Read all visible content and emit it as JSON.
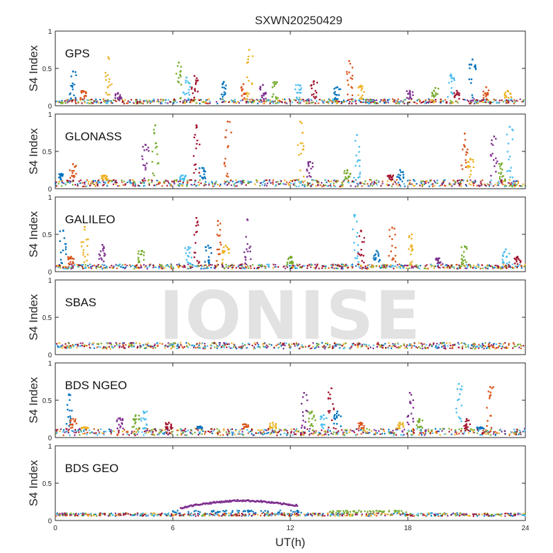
{
  "watermark": "IONISE",
  "chart_data": {
    "type": "scatter",
    "title": "SXWN20250429",
    "xlabel": "UT(h)",
    "ylabel": "S4 Index",
    "xlim": [
      0,
      24
    ],
    "ylim": [
      0,
      1
    ],
    "xticks": [
      0,
      6,
      12,
      18,
      24
    ],
    "yticks": [
      0,
      0.5,
      1
    ],
    "ytick_labels": [
      "0",
      "0.5",
      "1"
    ],
    "grid": false,
    "colors": [
      "#0072BD",
      "#D95319",
      "#EDB120",
      "#7E2F8E",
      "#77AC30",
      "#4DBEEE",
      "#A2142F"
    ],
    "panels": [
      {
        "label": "GPS",
        "baseline": [
          0.03,
          0.09
        ],
        "bursts": [
          [
            0.9,
            0.46
          ],
          [
            1.4,
            0.2
          ],
          [
            2.7,
            0.65
          ],
          [
            3.2,
            0.17
          ],
          [
            6.3,
            0.58
          ],
          [
            6.7,
            0.38
          ],
          [
            7.1,
            0.4
          ],
          [
            8.6,
            0.32
          ],
          [
            9.6,
            0.29
          ],
          [
            9.9,
            0.75
          ],
          [
            10.6,
            0.28
          ],
          [
            11.2,
            0.32
          ],
          [
            12.4,
            0.28
          ],
          [
            13.2,
            0.33
          ],
          [
            14.4,
            0.25
          ],
          [
            15.0,
            0.6
          ],
          [
            15.6,
            0.27
          ],
          [
            18.1,
            0.2
          ],
          [
            19.4,
            0.24
          ],
          [
            20.2,
            0.42
          ],
          [
            20.5,
            0.2
          ],
          [
            21.3,
            0.62
          ],
          [
            22.0,
            0.25
          ],
          [
            23.1,
            0.2
          ]
        ]
      },
      {
        "label": "GLONASS",
        "baseline": [
          0.03,
          0.12
        ],
        "bursts": [
          [
            0.3,
            0.2
          ],
          [
            0.9,
            0.33
          ],
          [
            2.5,
            0.18
          ],
          [
            4.6,
            0.59
          ],
          [
            5.1,
            0.85
          ],
          [
            6.5,
            0.18
          ],
          [
            7.2,
            0.85
          ],
          [
            7.5,
            0.28
          ],
          [
            8.8,
            0.9
          ],
          [
            12.5,
            0.9
          ],
          [
            13.0,
            0.36
          ],
          [
            14.9,
            0.25
          ],
          [
            15.4,
            0.72
          ],
          [
            17.1,
            0.18
          ],
          [
            17.6,
            0.25
          ],
          [
            20.9,
            0.74
          ],
          [
            21.2,
            0.4
          ],
          [
            22.4,
            0.7
          ],
          [
            22.8,
            0.34
          ],
          [
            23.2,
            0.83
          ]
        ]
      },
      {
        "label": "GALILEO",
        "baseline": [
          0.04,
          0.1
        ],
        "bursts": [
          [
            0.4,
            0.55
          ],
          [
            0.8,
            0.2
          ],
          [
            1.5,
            0.6
          ],
          [
            2.4,
            0.36
          ],
          [
            4.4,
            0.28
          ],
          [
            6.8,
            0.33
          ],
          [
            7.2,
            0.72
          ],
          [
            7.8,
            0.35
          ],
          [
            8.3,
            0.68
          ],
          [
            8.7,
            0.35
          ],
          [
            9.8,
            0.7
          ],
          [
            12.0,
            0.2
          ],
          [
            15.3,
            0.76
          ],
          [
            15.6,
            0.55
          ],
          [
            16.4,
            0.28
          ],
          [
            17.2,
            0.59
          ],
          [
            18.2,
            0.5
          ],
          [
            19.6,
            0.18
          ],
          [
            20.9,
            0.34
          ],
          [
            23.0,
            0.3
          ],
          [
            23.6,
            0.2
          ]
        ]
      },
      {
        "label": "SBAS",
        "baseline": [
          0.08,
          0.16
        ],
        "bursts": []
      },
      {
        "label": "BDS NGEO",
        "baseline": [
          0.03,
          0.12
        ],
        "bursts": [
          [
            0.7,
            0.58
          ],
          [
            0.9,
            0.25
          ],
          [
            1.5,
            0.14
          ],
          [
            3.3,
            0.26
          ],
          [
            4.1,
            0.3
          ],
          [
            4.5,
            0.35
          ],
          [
            5.8,
            0.2
          ],
          [
            7.4,
            0.15
          ],
          [
            9.7,
            0.18
          ],
          [
            11.1,
            0.2
          ],
          [
            12.7,
            0.6
          ],
          [
            13.1,
            0.35
          ],
          [
            13.7,
            0.3
          ],
          [
            14.1,
            0.66
          ],
          [
            14.4,
            0.35
          ],
          [
            15.6,
            0.2
          ],
          [
            17.6,
            0.2
          ],
          [
            18.1,
            0.6
          ],
          [
            18.6,
            0.25
          ],
          [
            20.6,
            0.72
          ],
          [
            21.0,
            0.25
          ],
          [
            21.7,
            0.14
          ],
          [
            22.2,
            0.68
          ]
        ]
      },
      {
        "label": "BDS GEO",
        "baseline": [
          0.06,
          0.1
        ],
        "arc": {
          "color_index": 3,
          "x": [
            6.4,
            7.4,
            8.4,
            9.4,
            10.4,
            11.4,
            12.4
          ],
          "y": [
            0.17,
            0.22,
            0.25,
            0.27,
            0.26,
            0.23,
            0.2
          ]
        },
        "flat_bands": [
          {
            "color_index": 4,
            "x": [
              14.0,
              18.1
            ],
            "y": 0.12
          },
          {
            "color_index": 0,
            "x": [
              6.0,
              12.6
            ],
            "y": 0.12
          }
        ],
        "bursts": []
      }
    ]
  }
}
